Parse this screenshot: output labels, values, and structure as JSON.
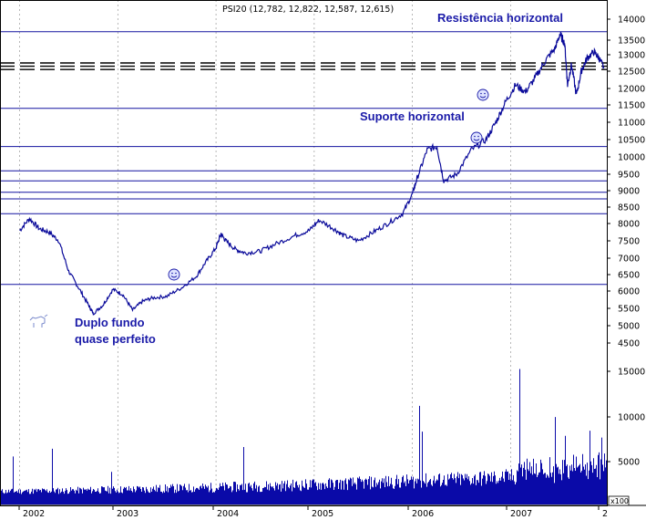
{
  "chart_data": {
    "type": "line",
    "title": "PSI20 (12,782, 12,822, 12,587, 12,615)",
    "price_ticks": [
      "14000",
      "13500",
      "13000",
      "12500",
      "12000",
      "11500",
      "11000",
      "10500",
      "10000",
      "9500",
      "9000",
      "8500",
      "8000",
      "7500",
      "7000",
      "6500",
      "6000",
      "5500",
      "5000",
      "4500"
    ],
    "volume_ticks": [
      "15000",
      "10000",
      "5000"
    ],
    "volume_unit": "x100",
    "x_ticks": [
      "2002",
      "2003",
      "2004",
      "2005",
      "2006",
      "2007",
      "2"
    ],
    "price_range": [
      4500,
      14000
    ],
    "horizontal_lines": [
      13700,
      11400,
      10300,
      9600,
      9300,
      8950,
      8750,
      8300,
      6200
    ],
    "dashed_lines": [
      12750,
      12650,
      12550
    ],
    "price_series": {
      "name": "PSI20",
      "points": [
        [
          2002.0,
          7800
        ],
        [
          2002.1,
          8150
        ],
        [
          2002.2,
          7850
        ],
        [
          2002.3,
          7750
        ],
        [
          2002.4,
          7500
        ],
        [
          2002.5,
          6600
        ],
        [
          2002.6,
          6100
        ],
        [
          2002.7,
          5600
        ],
        [
          2002.75,
          5350
        ],
        [
          2002.85,
          5600
        ],
        [
          2002.95,
          6050
        ],
        [
          2003.05,
          5900
        ],
        [
          2003.15,
          5450
        ],
        [
          2003.25,
          5700
        ],
        [
          2003.35,
          5800
        ],
        [
          2003.5,
          5850
        ],
        [
          2003.65,
          6100
        ],
        [
          2003.8,
          6450
        ],
        [
          2003.9,
          6900
        ],
        [
          2004.0,
          7300
        ],
        [
          2004.05,
          7700
        ],
        [
          2004.1,
          7500
        ],
        [
          2004.2,
          7250
        ],
        [
          2004.3,
          7150
        ],
        [
          2004.45,
          7200
        ],
        [
          2004.6,
          7400
        ],
        [
          2004.8,
          7650
        ],
        [
          2004.95,
          7800
        ],
        [
          2005.05,
          8100
        ],
        [
          2005.2,
          7850
        ],
        [
          2005.3,
          7650
        ],
        [
          2005.45,
          7500
        ],
        [
          2005.6,
          7750
        ],
        [
          2005.75,
          8000
        ],
        [
          2005.9,
          8300
        ],
        [
          2006.0,
          8900
        ],
        [
          2006.05,
          9400
        ],
        [
          2006.15,
          10200
        ],
        [
          2006.25,
          10300
        ],
        [
          2006.32,
          9300
        ],
        [
          2006.45,
          9500
        ],
        [
          2006.6,
          10200
        ],
        [
          2006.75,
          10500
        ],
        [
          2006.85,
          11000
        ],
        [
          2006.95,
          11600
        ],
        [
          2007.05,
          12100
        ],
        [
          2007.15,
          11900
        ],
        [
          2007.25,
          12300
        ],
        [
          2007.35,
          12800
        ],
        [
          2007.45,
          13200
        ],
        [
          2007.5,
          13650
        ],
        [
          2007.55,
          13400
        ],
        [
          2007.58,
          12100
        ],
        [
          2007.62,
          12700
        ],
        [
          2007.67,
          11800
        ],
        [
          2007.72,
          12500
        ],
        [
          2007.78,
          12900
        ],
        [
          2007.85,
          13100
        ],
        [
          2007.9,
          12900
        ],
        [
          2007.95,
          12600
        ]
      ]
    },
    "annotations": [
      {
        "text": "Resistência horizontal"
      },
      {
        "text": "Suporte horizontal"
      },
      {
        "text": "Duplo fundo"
      },
      {
        "text": "quase perfeito"
      }
    ]
  }
}
